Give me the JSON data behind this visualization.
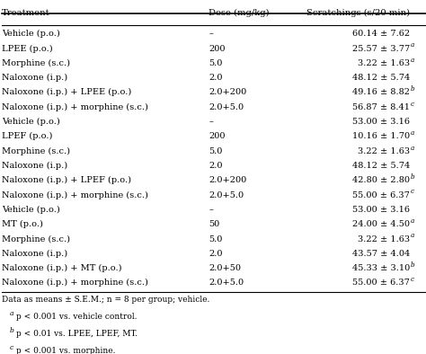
{
  "headers": [
    "Treatment",
    "Dose (mg/kg)",
    "Scratchings (s/20 min)"
  ],
  "rows": [
    [
      "Vehicle (p.o.)",
      "–",
      "60.14 ± 7.62",
      ""
    ],
    [
      "LPEE (p.o.)",
      "200",
      "25.57 ± 3.77",
      "a"
    ],
    [
      "Morphine (s.c.)",
      "5.0",
      "3.22 ± 1.63",
      "a"
    ],
    [
      "Naloxone (i.p.)",
      "2.0",
      "48.12 ± 5.74",
      ""
    ],
    [
      "Naloxone (i.p.) + LPEE (p.o.)",
      "2.0 + 200",
      "49.16 ± 8.82",
      "b"
    ],
    [
      "Naloxone (i.p.) + morphine (s.c.)",
      "2.0 + 5.0",
      "56.87 ± 8.41",
      "c"
    ],
    [
      "Vehicle (p.o.)",
      "–",
      "53.00 ± 3.16",
      ""
    ],
    [
      "LPEF (p.o.)",
      "200",
      "10.16 ± 1.70",
      "a"
    ],
    [
      "Morphine (s.c.)",
      "5.0",
      "3.22 ± 1.63",
      "a"
    ],
    [
      "Naloxone (i.p.)",
      "2.0",
      "48.12 ± 5.74",
      ""
    ],
    [
      "Naloxone (i.p.) + LPEF (p.o.)",
      "2.0 + 200",
      "42.80 ± 2.80",
      "b"
    ],
    [
      "Naloxone (i.p.) + morphine (s.c.)",
      "2.0 + 5.0",
      "55.00 ± 6.37",
      "c"
    ],
    [
      "Vehicle (p.o.)",
      "–",
      "53.00 ± 3.16",
      ""
    ],
    [
      "MT (p.o.)",
      "50",
      "24.00 ± 4.50",
      "a"
    ],
    [
      "Morphine (s.c.)",
      "5.0",
      "3.22 ± 1.63",
      "a"
    ],
    [
      "Naloxone (i.p.)",
      "2.0",
      "43.57 ± 4.04",
      ""
    ],
    [
      "Naloxone (i.p.) + MT (p.o.)",
      "2.0 + 50",
      "45.33 ± 3.10",
      "b"
    ],
    [
      "Naloxone (i.p.) + morphine (s.c.)",
      "2.0 + 5.0",
      "55.00 ± 6.37",
      "c"
    ]
  ],
  "dose_display": [
    "–",
    "200",
    "5.0",
    "2.0",
    "2.0+200",
    "2.0+5.0",
    "–",
    "200",
    "5.0",
    "2.0",
    "2.0+200",
    "2.0+5.0",
    "–",
    "50",
    "5.0",
    "2.0",
    "2.0+50",
    "2.0+5.0"
  ],
  "footnote_labels": [
    "a",
    "b",
    "c"
  ],
  "footnote_texts": [
    "p < 0.001 vs. vehicle control.",
    "p < 0.01 vs. LPEE, LPEF, MT.",
    "p < 0.001 vs. morphine."
  ],
  "footnote_main": "Data as means ± S.E.M.; n = 8 per group; vehicle.",
  "bg_color": "#ffffff",
  "line_color": "#000000",
  "text_color": "#000000",
  "font_size": 7.0,
  "header_font_size": 7.2,
  "footnote_font_size": 6.5,
  "fig_width": 4.74,
  "fig_height": 3.94,
  "dpi": 100
}
